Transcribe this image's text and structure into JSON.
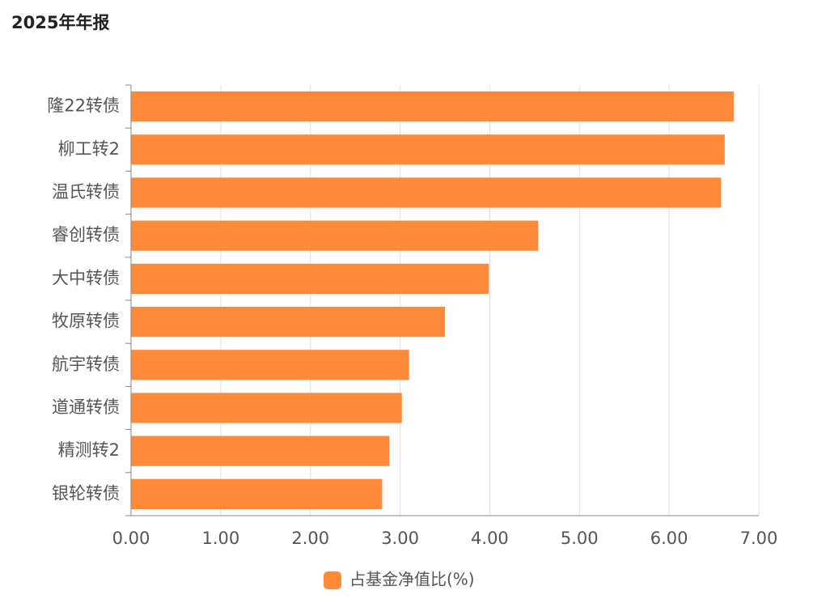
{
  "title": "2025年年报",
  "colors": {
    "bar": "#FF8A3A",
    "grid": "#E0E0E0",
    "axis": "#888888",
    "text": "#555555"
  },
  "chart_data": {
    "type": "bar",
    "orientation": "horizontal",
    "categories": [
      "隆22转债",
      "柳工转2",
      "温氏转债",
      "睿创转债",
      "大中转债",
      "牧原转债",
      "航宇转债",
      "道通转债",
      "精测转2",
      "银轮转债"
    ],
    "series": [
      {
        "name": "占基金净值比(%)",
        "values": [
          6.72,
          6.62,
          6.58,
          4.54,
          3.99,
          3.5,
          3.1,
          3.02,
          2.88,
          2.8
        ]
      }
    ],
    "xlim": [
      0,
      7
    ],
    "xticks": [
      "0.00",
      "1.00",
      "2.00",
      "3.00",
      "4.00",
      "5.00",
      "6.00",
      "7.00"
    ],
    "grid": true,
    "legend": "bottom-center"
  }
}
